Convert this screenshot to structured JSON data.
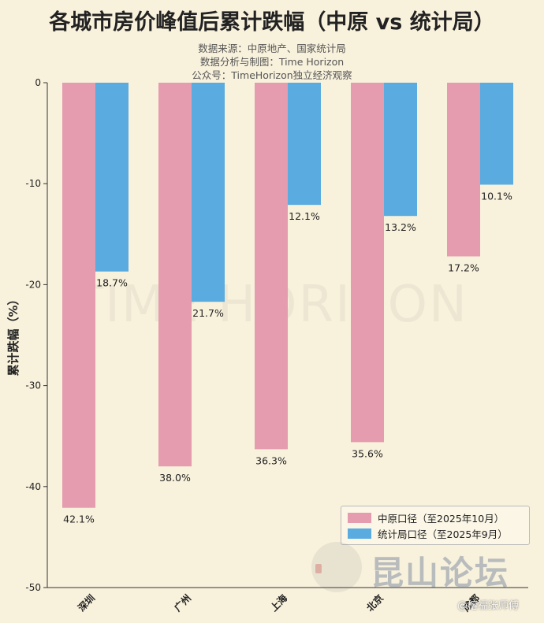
{
  "header": {
    "title": "各城市房价峰值后累计跌幅（中原 vs 统计局）",
    "subtitle_lines": [
      "数据来源：中原地产、国家统计局",
      "数据分析与制图：Time Horizon",
      "公众号：TimeHorizon独立经济观察"
    ]
  },
  "watermark": {
    "text": "TIME HORIZON",
    "brand": "昆山论坛",
    "weibo": "@榕福张师傅"
  },
  "colors": {
    "centaline": "#e59cae",
    "nbs": "#5aabe0",
    "background": "#f8f1dc"
  },
  "chart_data": {
    "type": "bar",
    "categories": [
      "深圳",
      "广州",
      "上海",
      "北京",
      "成都"
    ],
    "series": [
      {
        "name": "中原口径（至2025年10月）",
        "values": [
          -42.1,
          -38.0,
          -36.3,
          -35.6,
          -17.2
        ],
        "labels": [
          "42.1%",
          "38.0%",
          "36.3%",
          "35.6%",
          "17.2%"
        ]
      },
      {
        "name": "统计局口径（至2025年9月）",
        "values": [
          -18.7,
          -21.7,
          -12.1,
          -13.2,
          -10.1
        ],
        "labels": [
          "18.7%",
          "21.7%",
          "12.1%",
          "13.2%",
          "10.1%"
        ]
      }
    ],
    "ylabel": "累计跌幅（%）",
    "ylim": [
      -50,
      0
    ],
    "yticks": [
      "0",
      "-10",
      "-20",
      "-30",
      "-40",
      "-50"
    ],
    "grid": false,
    "legend_position": "bottom-right"
  }
}
